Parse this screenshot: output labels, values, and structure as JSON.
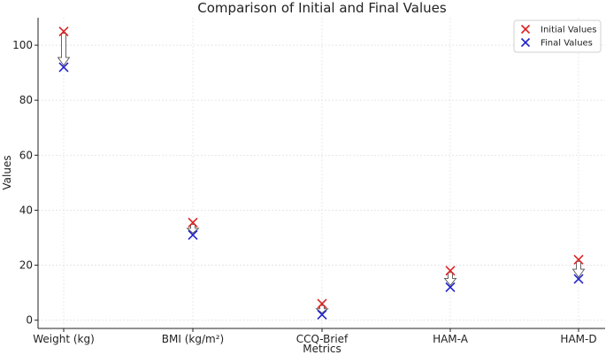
{
  "chart_data": {
    "type": "scatter",
    "title": "Comparison of Initial and Final Values",
    "xlabel": "Metrics",
    "ylabel": "Values",
    "categories": [
      "Weight (kg)",
      "BMI (kg/m²)",
      "CCQ-Brief",
      "HAM-A",
      "HAM-D"
    ],
    "series": [
      {
        "name": "Initial Values",
        "color": "#dd2222",
        "marker": "x",
        "values": [
          105,
          35.5,
          6,
          18,
          22
        ]
      },
      {
        "name": "Final Values",
        "color": "#2222cc",
        "marker": "x",
        "values": [
          92,
          31,
          2,
          12,
          15
        ]
      }
    ],
    "arrows": "initial-to-final",
    "ylim": [
      -3,
      110
    ],
    "yticks": [
      0,
      20,
      40,
      60,
      80,
      100
    ],
    "grid": true,
    "legend_position": "top-right"
  }
}
